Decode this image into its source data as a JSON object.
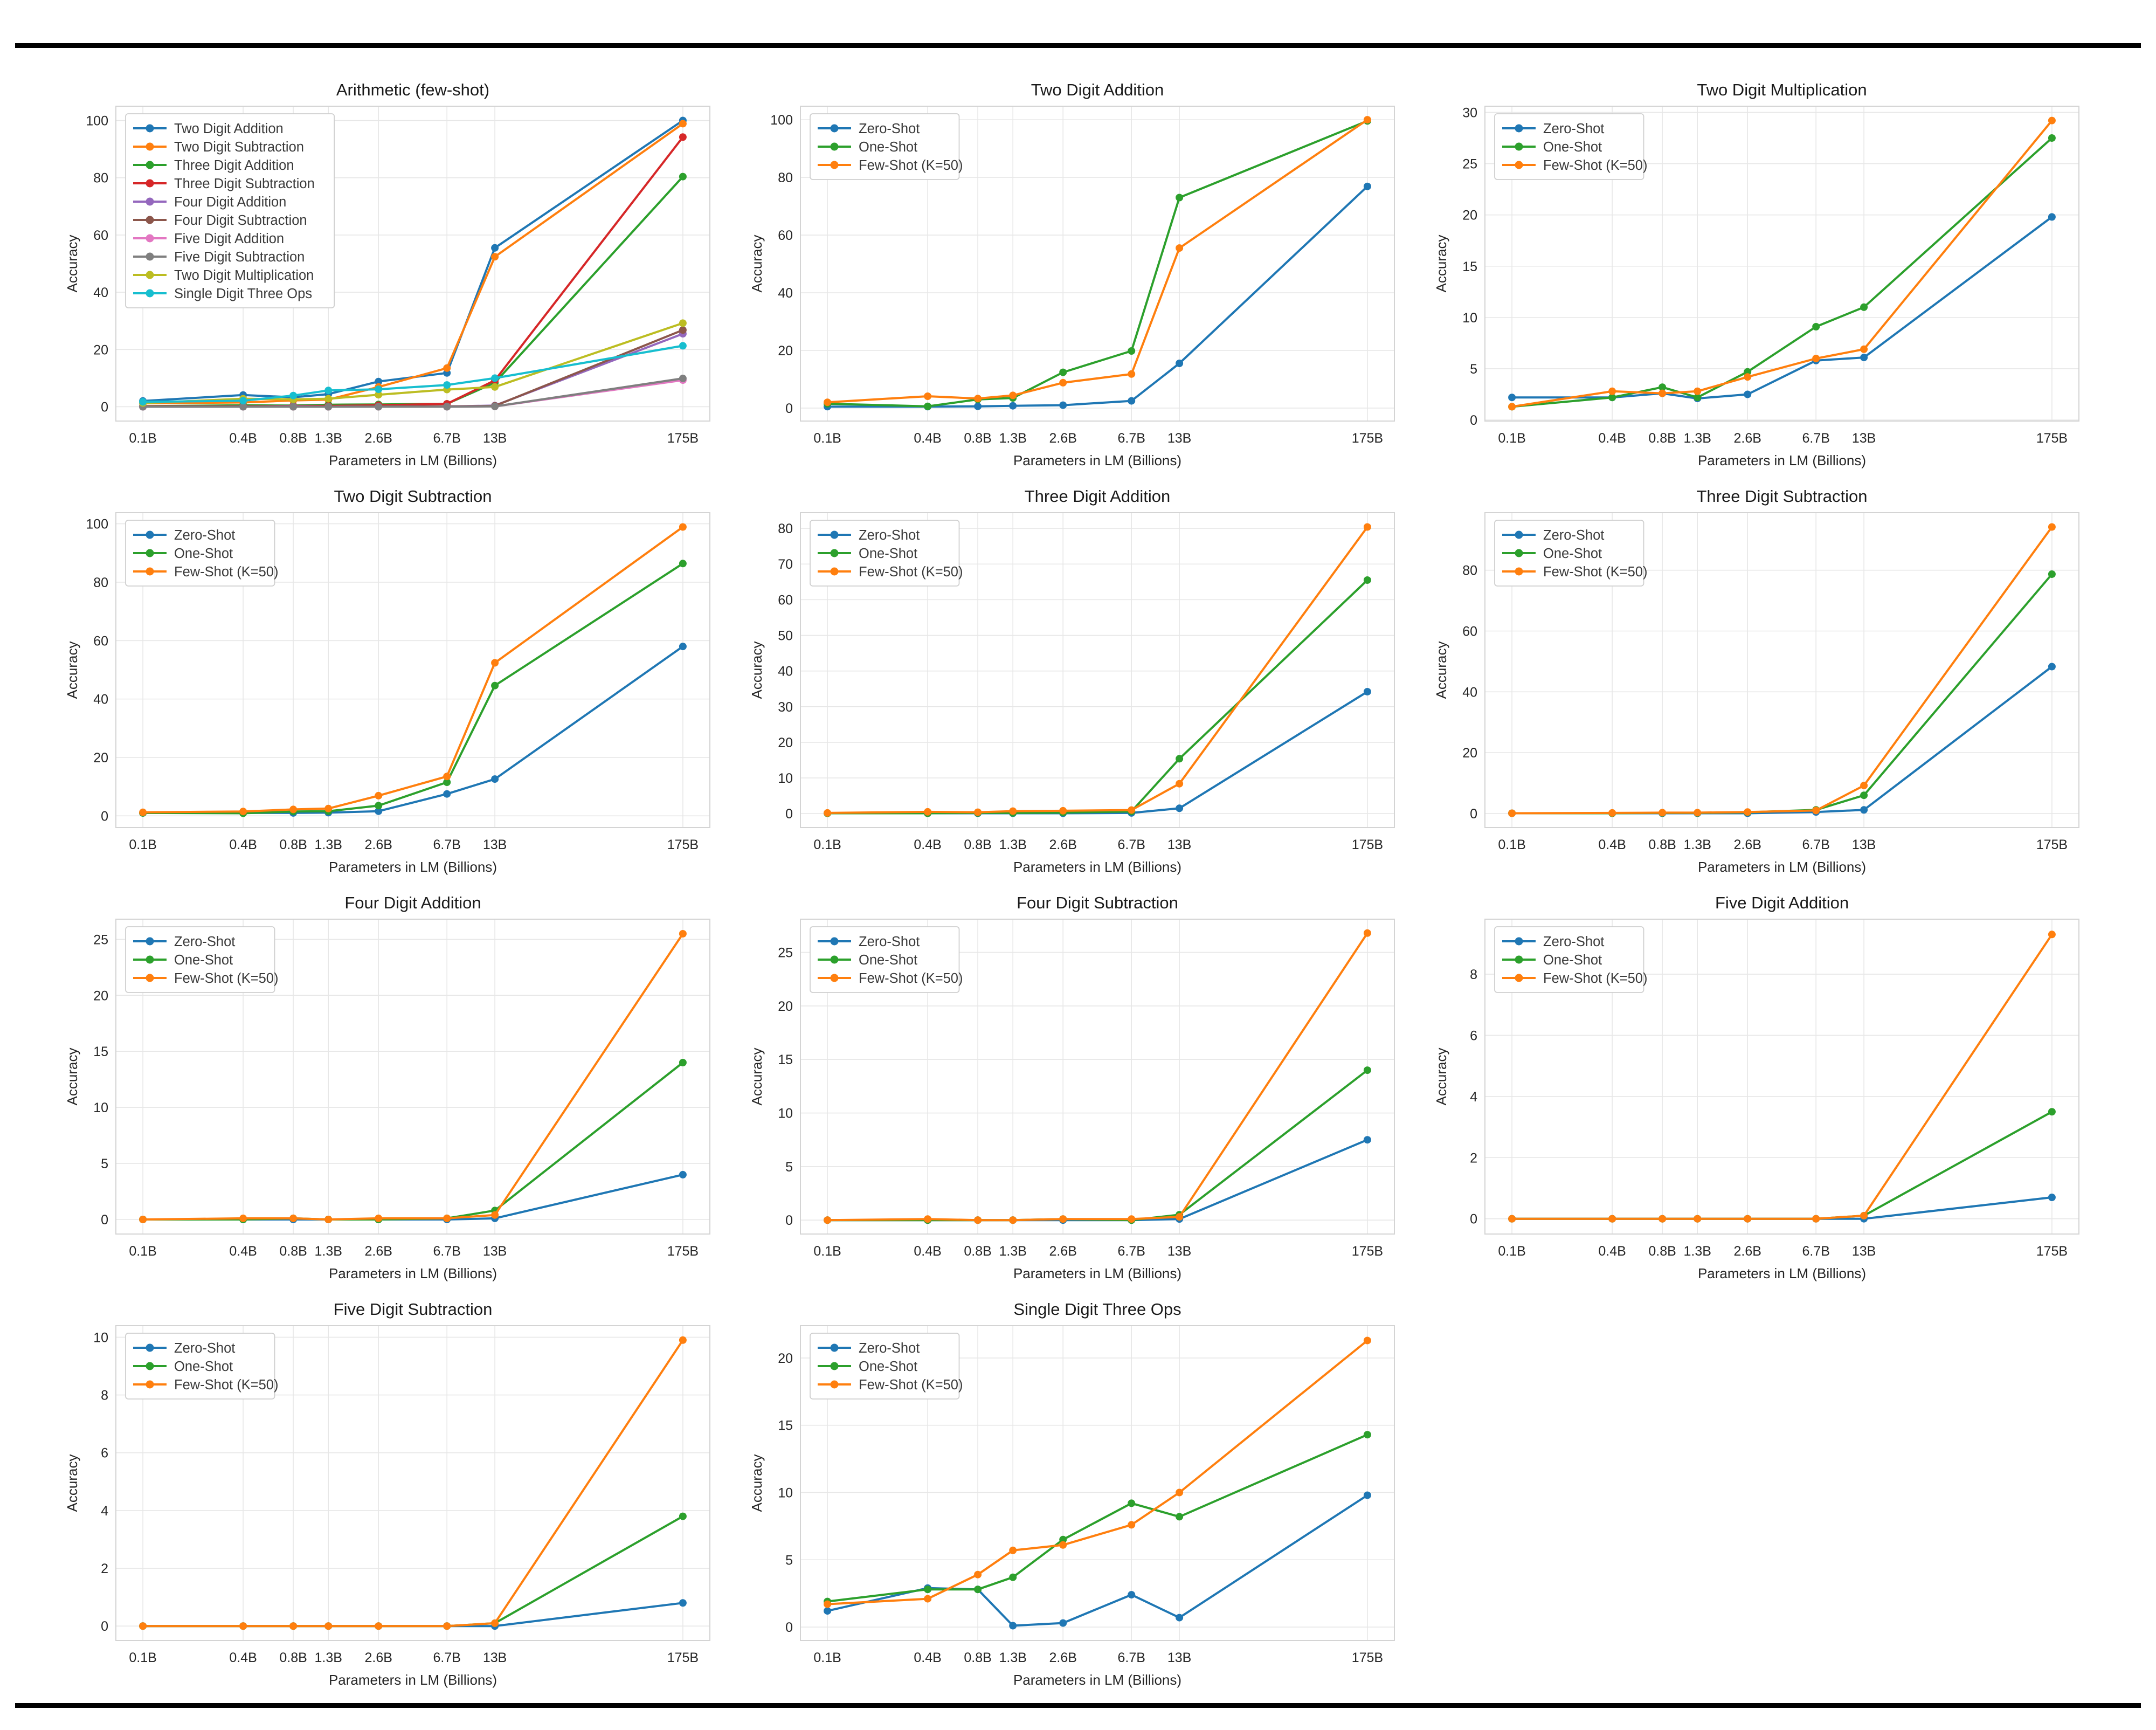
{
  "figure": {
    "background_color": "#ffffff",
    "horizontal_rule_color": "#000000",
    "grid_color": "#e7e7e7",
    "axes_border_color": "#d4d4d4",
    "text_color": "#262626"
  },
  "chart_data": [
    {
      "id": "arithmetic-few-shot",
      "type": "line",
      "title": "Arithmetic (few-shot)",
      "xlabel": "Parameters in LM (Billions)",
      "ylabel": "Accuracy",
      "x_scale": "log",
      "x_values": [
        0.1,
        0.4,
        0.8,
        1.3,
        2.6,
        6.7,
        13,
        175
      ],
      "x_tick_labels": [
        "0.1B",
        "0.4B",
        "0.8B",
        "1.3B",
        "2.6B",
        "6.7B",
        "13B",
        "175B"
      ],
      "ylim": [
        -5,
        105
      ],
      "yticks": [
        0,
        20,
        40,
        60,
        80,
        100
      ],
      "grid": true,
      "legend_position": "upper left",
      "series": [
        {
          "name": "Two Digit Addition",
          "color": "#1f77b4",
          "values": [
            2.0,
            4.1,
            3.3,
            4.4,
            8.8,
            11.8,
            55.5,
            100.0
          ]
        },
        {
          "name": "Two Digit Subtraction",
          "color": "#ff7f0e",
          "values": [
            1.2,
            1.5,
            2.2,
            2.5,
            6.9,
            13.5,
            52.4,
            98.9
          ]
        },
        {
          "name": "Three Digit Addition",
          "color": "#2ca02c",
          "values": [
            0.2,
            0.5,
            0.4,
            0.7,
            0.8,
            1.0,
            8.4,
            80.4
          ]
        },
        {
          "name": "Three Digit Subtraction",
          "color": "#d62728",
          "values": [
            0.1,
            0.2,
            0.3,
            0.3,
            0.5,
            1.0,
            9.2,
            94.2
          ]
        },
        {
          "name": "Four Digit Addition",
          "color": "#9467bd",
          "values": [
            0.0,
            0.1,
            0.1,
            0.0,
            0.1,
            0.1,
            0.4,
            25.5
          ]
        },
        {
          "name": "Four Digit Subtraction",
          "color": "#8c564b",
          "values": [
            0.0,
            0.1,
            0.0,
            0.0,
            0.1,
            0.1,
            0.3,
            26.8
          ]
        },
        {
          "name": "Five Digit Addition",
          "color": "#e377c2",
          "values": [
            0.0,
            0.0,
            0.0,
            0.0,
            0.0,
            0.0,
            0.1,
            9.3
          ]
        },
        {
          "name": "Five Digit Subtraction",
          "color": "#7f7f7f",
          "values": [
            0.0,
            0.0,
            0.0,
            0.0,
            0.0,
            0.0,
            0.1,
            9.9
          ]
        },
        {
          "name": "Two Digit Multiplication",
          "color": "#bcbd22",
          "values": [
            1.3,
            2.8,
            2.6,
            2.8,
            4.2,
            6.0,
            6.9,
            29.2
          ]
        },
        {
          "name": "Single Digit Three Ops",
          "color": "#17becf",
          "values": [
            1.7,
            2.1,
            3.9,
            5.7,
            6.1,
            7.6,
            10.0,
            21.3
          ]
        }
      ]
    },
    {
      "id": "two-digit-addition",
      "type": "line",
      "title": "Two Digit Addition",
      "xlabel": "Parameters in LM (Billions)",
      "ylabel": "Accuracy",
      "x_scale": "log",
      "x_values": [
        0.1,
        0.4,
        0.8,
        1.3,
        2.6,
        6.7,
        13,
        175
      ],
      "x_tick_labels": [
        "0.1B",
        "0.4B",
        "0.8B",
        "1.3B",
        "2.6B",
        "6.7B",
        "13B",
        "175B"
      ],
      "ylim": [
        -4.5,
        104.7
      ],
      "yticks": [
        0,
        20,
        40,
        60,
        80,
        100
      ],
      "grid": true,
      "legend_position": "upper left",
      "series": [
        {
          "name": "Zero-Shot",
          "color": "#1f77b4",
          "values": [
            0.5,
            0.5,
            0.6,
            0.8,
            1.0,
            2.5,
            15.5,
            76.9
          ]
        },
        {
          "name": "One-Shot",
          "color": "#2ca02c",
          "values": [
            1.5,
            0.6,
            3.0,
            3.5,
            12.4,
            19.8,
            73.0,
            99.6
          ]
        },
        {
          "name": "Few-Shot (K=50)",
          "color": "#ff7f0e",
          "values": [
            2.0,
            4.1,
            3.3,
            4.4,
            8.8,
            11.8,
            55.5,
            100.0
          ]
        }
      ]
    },
    {
      "id": "two-digit-multiplication",
      "type": "line",
      "title": "Two Digit Multiplication",
      "xlabel": "Parameters in LM (Billions)",
      "ylabel": "Accuracy",
      "x_scale": "log",
      "x_values": [
        0.1,
        0.4,
        0.8,
        1.3,
        2.6,
        6.7,
        13,
        175
      ],
      "x_tick_labels": [
        "0.1B",
        "0.4B",
        "0.8B",
        "1.3B",
        "2.6B",
        "6.7B",
        "13B",
        "175B"
      ],
      "ylim": [
        -0.1,
        30.6
      ],
      "yticks": [
        0,
        5,
        10,
        15,
        20,
        25,
        30
      ],
      "grid": true,
      "legend_position": "upper left",
      "series": [
        {
          "name": "Zero-Shot",
          "color": "#1f77b4",
          "values": [
            2.2,
            2.2,
            2.6,
            2.1,
            2.5,
            5.8,
            6.1,
            19.8
          ]
        },
        {
          "name": "One-Shot",
          "color": "#2ca02c",
          "values": [
            1.3,
            2.2,
            3.2,
            2.2,
            4.7,
            9.1,
            11.0,
            27.5
          ]
        },
        {
          "name": "Few-Shot (K=50)",
          "color": "#ff7f0e",
          "values": [
            1.3,
            2.8,
            2.6,
            2.8,
            4.2,
            6.0,
            6.9,
            29.2
          ]
        }
      ]
    },
    {
      "id": "two-digit-subtraction",
      "type": "line",
      "title": "Two Digit Subtraction",
      "xlabel": "Parameters in LM (Billions)",
      "ylabel": "Accuracy",
      "x_scale": "log",
      "x_values": [
        0.1,
        0.4,
        0.8,
        1.3,
        2.6,
        6.7,
        13,
        175
      ],
      "x_tick_labels": [
        "0.1B",
        "0.4B",
        "0.8B",
        "1.3B",
        "2.6B",
        "6.7B",
        "13B",
        "175B"
      ],
      "ylim": [
        -4.0,
        103.8
      ],
      "yticks": [
        0,
        20,
        40,
        60,
        80,
        100
      ],
      "grid": true,
      "legend_position": "upper left",
      "series": [
        {
          "name": "Zero-Shot",
          "color": "#1f77b4",
          "values": [
            1.0,
            1.0,
            1.0,
            1.1,
            1.6,
            7.5,
            12.6,
            58.0
          ]
        },
        {
          "name": "One-Shot",
          "color": "#2ca02c",
          "values": [
            1.0,
            0.9,
            1.5,
            1.6,
            3.5,
            11.5,
            44.6,
            86.4
          ]
        },
        {
          "name": "Few-Shot (K=50)",
          "color": "#ff7f0e",
          "values": [
            1.2,
            1.5,
            2.2,
            2.5,
            6.9,
            13.5,
            52.4,
            98.9
          ]
        }
      ]
    },
    {
      "id": "three-digit-addition",
      "type": "line",
      "title": "Three Digit Addition",
      "xlabel": "Parameters in LM (Billions)",
      "ylabel": "Accuracy",
      "x_scale": "log",
      "x_values": [
        0.1,
        0.4,
        0.8,
        1.3,
        2.6,
        6.7,
        13,
        175
      ],
      "x_tick_labels": [
        "0.1B",
        "0.4B",
        "0.8B",
        "1.3B",
        "2.6B",
        "6.7B",
        "13B",
        "175B"
      ],
      "ylim": [
        -3.9,
        84.4
      ],
      "yticks": [
        0,
        10,
        20,
        30,
        40,
        50,
        60,
        70,
        80
      ],
      "grid": true,
      "legend_position": "upper left",
      "series": [
        {
          "name": "Zero-Shot",
          "color": "#1f77b4",
          "values": [
            0.1,
            0.1,
            0.1,
            0.1,
            0.1,
            0.2,
            1.5,
            34.2
          ]
        },
        {
          "name": "One-Shot",
          "color": "#2ca02c",
          "values": [
            0.1,
            0.1,
            0.2,
            0.2,
            0.3,
            0.6,
            15.4,
            65.5
          ]
        },
        {
          "name": "Few-Shot (K=50)",
          "color": "#ff7f0e",
          "values": [
            0.2,
            0.5,
            0.4,
            0.7,
            0.8,
            1.0,
            8.4,
            80.4
          ]
        }
      ]
    },
    {
      "id": "three-digit-subtraction",
      "type": "line",
      "title": "Three Digit Subtraction",
      "xlabel": "Parameters in LM (Billions)",
      "ylabel": "Accuracy",
      "x_scale": "log",
      "x_values": [
        0.1,
        0.4,
        0.8,
        1.3,
        2.6,
        6.7,
        13,
        175
      ],
      "x_tick_labels": [
        "0.1B",
        "0.4B",
        "0.8B",
        "1.3B",
        "2.6B",
        "6.7B",
        "13B",
        "175B"
      ],
      "ylim": [
        -4.6,
        98.9
      ],
      "yticks": [
        0,
        20,
        40,
        60,
        80
      ],
      "grid": true,
      "legend_position": "upper left",
      "series": [
        {
          "name": "Zero-Shot",
          "color": "#1f77b4",
          "values": [
            0.1,
            0.1,
            0.1,
            0.1,
            0.1,
            0.5,
            1.2,
            48.3
          ]
        },
        {
          "name": "One-Shot",
          "color": "#2ca02c",
          "values": [
            0.1,
            0.1,
            0.2,
            0.2,
            0.4,
            1.2,
            6.0,
            78.7
          ]
        },
        {
          "name": "Few-Shot (K=50)",
          "color": "#ff7f0e",
          "values": [
            0.1,
            0.2,
            0.3,
            0.3,
            0.5,
            1.0,
            9.2,
            94.2
          ]
        }
      ]
    },
    {
      "id": "four-digit-addition",
      "type": "line",
      "title": "Four Digit Addition",
      "xlabel": "Parameters in LM (Billions)",
      "ylabel": "Accuracy",
      "x_scale": "log",
      "x_values": [
        0.1,
        0.4,
        0.8,
        1.3,
        2.6,
        6.7,
        13,
        175
      ],
      "x_tick_labels": [
        "0.1B",
        "0.4B",
        "0.8B",
        "1.3B",
        "2.6B",
        "6.7B",
        "13B",
        "175B"
      ],
      "ylim": [
        -1.3,
        26.8
      ],
      "yticks": [
        0,
        5,
        10,
        15,
        20,
        25
      ],
      "grid": true,
      "legend_position": "upper left",
      "series": [
        {
          "name": "Zero-Shot",
          "color": "#1f77b4",
          "values": [
            0.0,
            0.0,
            0.0,
            0.0,
            0.0,
            0.0,
            0.1,
            4.0
          ]
        },
        {
          "name": "One-Shot",
          "color": "#2ca02c",
          "values": [
            0.0,
            0.0,
            0.1,
            0.0,
            0.0,
            0.1,
            0.8,
            14.0
          ]
        },
        {
          "name": "Few-Shot (K=50)",
          "color": "#ff7f0e",
          "values": [
            0.0,
            0.1,
            0.1,
            0.0,
            0.1,
            0.1,
            0.4,
            25.5
          ]
        }
      ]
    },
    {
      "id": "four-digit-subtraction",
      "type": "line",
      "title": "Four Digit Subtraction",
      "xlabel": "Parameters in LM (Billions)",
      "ylabel": "Accuracy",
      "x_scale": "log",
      "x_values": [
        0.1,
        0.4,
        0.8,
        1.3,
        2.6,
        6.7,
        13,
        175
      ],
      "x_tick_labels": [
        "0.1B",
        "0.4B",
        "0.8B",
        "1.3B",
        "2.6B",
        "6.7B",
        "13B",
        "175B"
      ],
      "ylim": [
        -1.3,
        28.1
      ],
      "yticks": [
        0,
        5,
        10,
        15,
        20,
        25
      ],
      "grid": true,
      "legend_position": "upper left",
      "series": [
        {
          "name": "Zero-Shot",
          "color": "#1f77b4",
          "values": [
            0.0,
            0.0,
            0.0,
            0.0,
            0.0,
            0.0,
            0.1,
            7.5
          ]
        },
        {
          "name": "One-Shot",
          "color": "#2ca02c",
          "values": [
            0.0,
            0.0,
            0.0,
            0.0,
            0.1,
            0.0,
            0.5,
            14.0
          ]
        },
        {
          "name": "Few-Shot (K=50)",
          "color": "#ff7f0e",
          "values": [
            0.0,
            0.1,
            0.0,
            0.0,
            0.1,
            0.1,
            0.3,
            26.8
          ]
        }
      ]
    },
    {
      "id": "five-digit-addition",
      "type": "line",
      "title": "Five Digit Addition",
      "xlabel": "Parameters in LM (Billions)",
      "ylabel": "Accuracy",
      "x_scale": "log",
      "x_values": [
        0.1,
        0.4,
        0.8,
        1.3,
        2.6,
        6.7,
        13,
        175
      ],
      "x_tick_labels": [
        "0.1B",
        "0.4B",
        "0.8B",
        "1.3B",
        "2.6B",
        "6.7B",
        "13B",
        "175B"
      ],
      "ylim": [
        -0.5,
        9.8
      ],
      "yticks": [
        0,
        2,
        4,
        6,
        8
      ],
      "grid": true,
      "legend_position": "upper left",
      "series": [
        {
          "name": "Zero-Shot",
          "color": "#1f77b4",
          "values": [
            0.0,
            0.0,
            0.0,
            0.0,
            0.0,
            0.0,
            0.0,
            0.7
          ]
        },
        {
          "name": "One-Shot",
          "color": "#2ca02c",
          "values": [
            0.0,
            0.0,
            0.0,
            0.0,
            0.0,
            0.0,
            0.1,
            3.5
          ]
        },
        {
          "name": "Few-Shot (K=50)",
          "color": "#ff7f0e",
          "values": [
            0.0,
            0.0,
            0.0,
            0.0,
            0.0,
            0.0,
            0.1,
            9.3
          ]
        }
      ]
    },
    {
      "id": "five-digit-subtraction",
      "type": "line",
      "title": "Five Digit Subtraction",
      "xlabel": "Parameters in LM (Billions)",
      "ylabel": "Accuracy",
      "x_scale": "log",
      "x_values": [
        0.1,
        0.4,
        0.8,
        1.3,
        2.6,
        6.7,
        13,
        175
      ],
      "x_tick_labels": [
        "0.1B",
        "0.4B",
        "0.8B",
        "1.3B",
        "2.6B",
        "6.7B",
        "13B",
        "175B"
      ],
      "ylim": [
        -0.5,
        10.4
      ],
      "yticks": [
        0,
        2,
        4,
        6,
        8,
        10
      ],
      "grid": true,
      "legend_position": "upper left",
      "series": [
        {
          "name": "Zero-Shot",
          "color": "#1f77b4",
          "values": [
            0.0,
            0.0,
            0.0,
            0.0,
            0.0,
            0.0,
            0.0,
            0.8
          ]
        },
        {
          "name": "One-Shot",
          "color": "#2ca02c",
          "values": [
            0.0,
            0.0,
            0.0,
            0.0,
            0.0,
            0.0,
            0.1,
            3.8
          ]
        },
        {
          "name": "Few-Shot (K=50)",
          "color": "#ff7f0e",
          "values": [
            0.0,
            0.0,
            0.0,
            0.0,
            0.0,
            0.0,
            0.1,
            9.9
          ]
        }
      ]
    },
    {
      "id": "single-digit-three-ops",
      "type": "line",
      "title": "Single Digit Three Ops",
      "xlabel": "Parameters in LM (Billions)",
      "ylabel": "Accuracy",
      "x_scale": "log",
      "x_values": [
        0.1,
        0.4,
        0.8,
        1.3,
        2.6,
        6.7,
        13,
        175
      ],
      "x_tick_labels": [
        "0.1B",
        "0.4B",
        "0.8B",
        "1.3B",
        "2.6B",
        "6.7B",
        "13B",
        "175B"
      ],
      "ylim": [
        -1.0,
        22.4
      ],
      "yticks": [
        0,
        5,
        10,
        15,
        20
      ],
      "grid": true,
      "legend_position": "upper left",
      "series": [
        {
          "name": "Zero-Shot",
          "color": "#1f77b4",
          "values": [
            1.2,
            2.9,
            2.8,
            0.1,
            0.3,
            2.4,
            0.7,
            9.8
          ]
        },
        {
          "name": "One-Shot",
          "color": "#2ca02c",
          "values": [
            1.9,
            2.8,
            2.8,
            3.7,
            6.5,
            9.2,
            8.2,
            14.3
          ]
        },
        {
          "name": "Few-Shot (K=50)",
          "color": "#ff7f0e",
          "values": [
            1.7,
            2.1,
            3.9,
            5.7,
            6.1,
            7.6,
            10.0,
            21.3
          ]
        }
      ]
    }
  ]
}
